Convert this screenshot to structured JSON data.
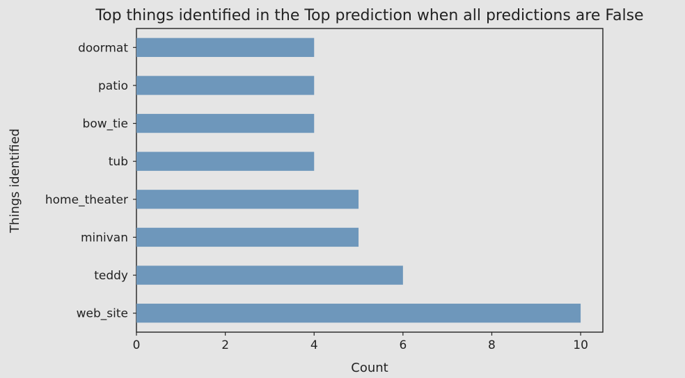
{
  "chart_data": {
    "type": "bar",
    "orientation": "horizontal",
    "title": "Top things identified in the Top prediction when all predictions are False",
    "xlabel": "Count",
    "ylabel": "Things identified",
    "categories": [
      "web_site",
      "teddy",
      "minivan",
      "home_theater",
      "tub",
      "bow_tie",
      "patio",
      "doormat"
    ],
    "values": [
      10,
      6,
      5,
      5,
      4,
      4,
      4,
      4
    ],
    "xlim": [
      0,
      10.5
    ],
    "xticks": [
      0,
      2,
      4,
      6,
      8,
      10
    ],
    "grid": false,
    "legend": "none",
    "bar_color": "#6e97bb",
    "background_color": "#e5e5e5"
  }
}
